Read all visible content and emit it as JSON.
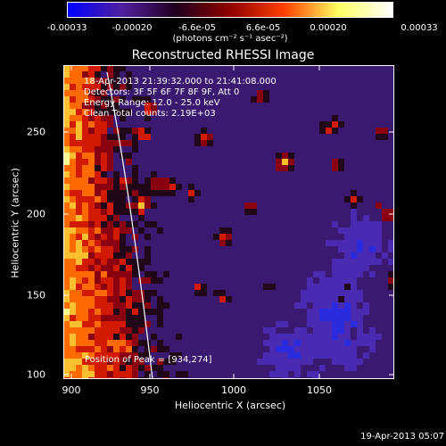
{
  "colorbar": {
    "labels": [
      "-0.00033",
      "-0.00020",
      "-6.6e-05",
      "6.6e-05",
      "0.00020",
      "0.00033"
    ],
    "units": "(photons cm⁻² s⁻¹ asec⁻²)",
    "gradient": [
      "#0000ff",
      "#5020a0",
      "#200020",
      "#900000",
      "#ff4000",
      "#ffff60",
      "#ffffff"
    ]
  },
  "title": "Reconstructed RHESSI Image",
  "info_lines": [
    "18-Apr-2013 21:39:32.000 to 21:41:08.000",
    "Detectors: 3F 5F 6F 7F 8F 9F, Att 0",
    "Energy Range: 12.0 - 25.0 keV",
    "Clean    Total counts: 2.19E+03"
  ],
  "axes": {
    "xlabel": "Heliocentric X (arcsec)",
    "ylabel": "Heliocentric Y (arcsec)",
    "xticks": [
      "900",
      "950",
      "1000",
      "1050"
    ],
    "yticks": [
      "100",
      "150",
      "200",
      "250"
    ],
    "xrange": [
      898,
      1090
    ],
    "yrange": [
      98,
      282
    ]
  },
  "peak_text": "Position of Peak = [934,274]",
  "timestamp": "19-Apr-2013 05:07"
}
